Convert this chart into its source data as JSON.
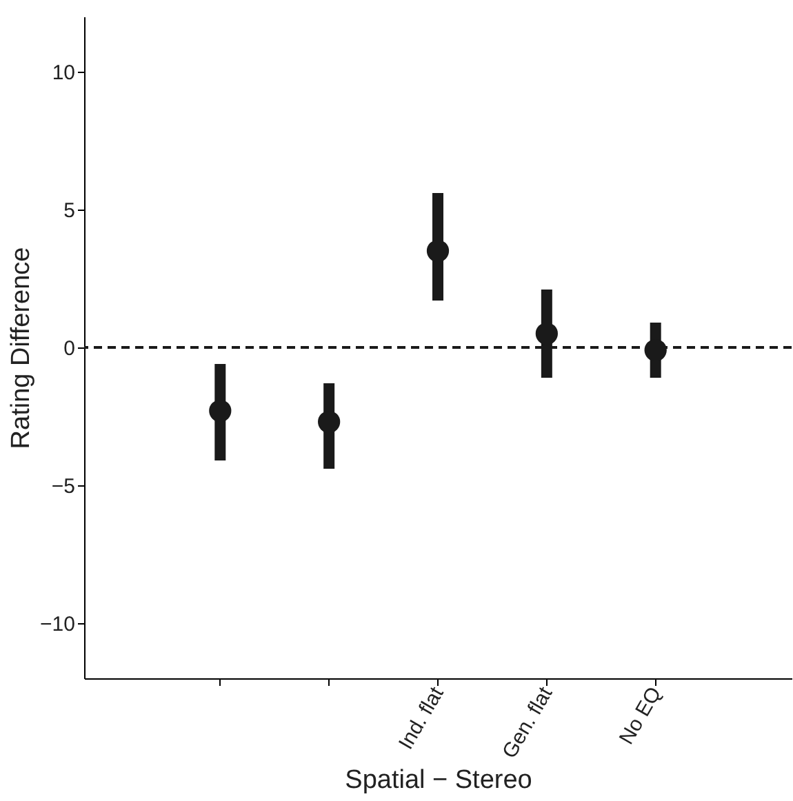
{
  "chart_data": {
    "type": "scatter",
    "xlabel": "Spatial − Stereo",
    "ylabel": "Rating Difference",
    "categories": [
      null,
      null,
      "Ind. flat",
      "Gen. flat",
      "No EQ"
    ],
    "values": [
      -2.3,
      -2.7,
      3.5,
      0.5,
      -0.1
    ],
    "errors": [
      [
        -4.1,
        -0.6
      ],
      [
        -4.4,
        -1.3
      ],
      [
        1.7,
        5.6
      ],
      [
        -1.1,
        2.1
      ],
      [
        -1.1,
        0.9
      ]
    ],
    "color": "#1a1a1a",
    "marker": "circle",
    "grid": false,
    "ylim": [
      -12,
      12
    ],
    "yticks": [
      -10,
      -5,
      0,
      5,
      10
    ],
    "ref_lines": [
      {
        "axis": "y",
        "value": 0,
        "line_style": "dashed",
        "color": "#1a1a1a"
      }
    ]
  }
}
